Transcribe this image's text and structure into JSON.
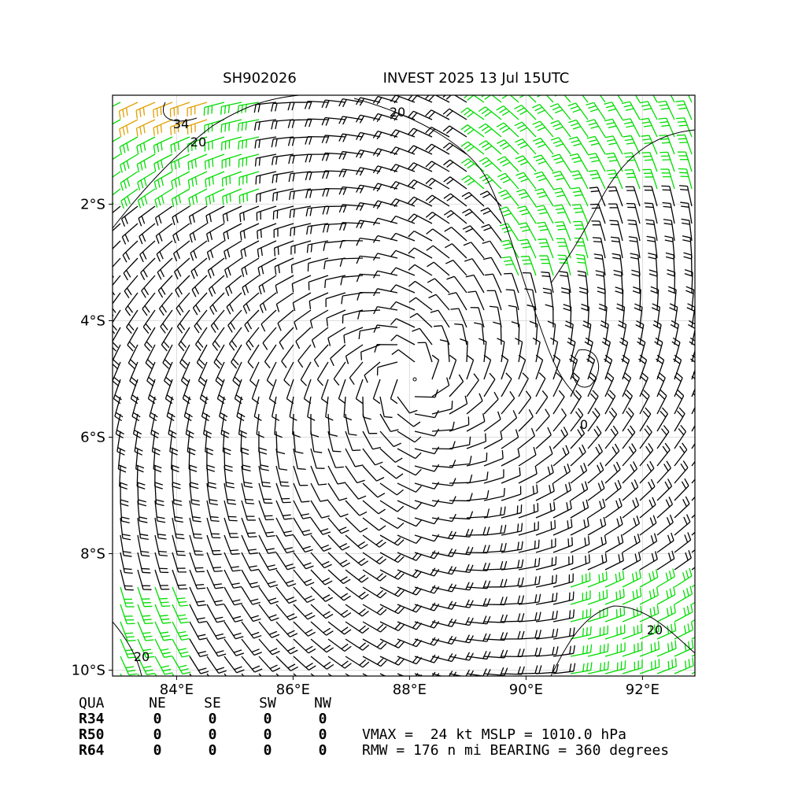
{
  "header": {
    "id": "SH902026",
    "title": "INVEST 2025 13 Jul 15UTC"
  },
  "map": {
    "xlim": [
      82.9,
      92.9
    ],
    "ylim": [
      -10.1,
      -0.13
    ],
    "xticks": [
      {
        "value": 84,
        "label": "84°E"
      },
      {
        "value": 86,
        "label": "86°E"
      },
      {
        "value": 88,
        "label": "88°E"
      },
      {
        "value": 90,
        "label": "90°E"
      },
      {
        "value": 92,
        "label": "92°E"
      }
    ],
    "yticks": [
      {
        "value": -2,
        "label": "2°S"
      },
      {
        "value": -4,
        "label": "4°S"
      },
      {
        "value": -6,
        "label": "6°S"
      },
      {
        "value": -8,
        "label": "8°S"
      },
      {
        "value": -10,
        "label": "10°S"
      }
    ],
    "grid": true,
    "contour_labels": [
      "20",
      "34",
      "20",
      "20",
      "0",
      "20"
    ]
  },
  "table": {
    "columns": [
      "QUA",
      "NE",
      "SE",
      "SW",
      "NW"
    ],
    "rows": [
      [
        "R34",
        0,
        0,
        0,
        0
      ],
      [
        "R50",
        0,
        0,
        0,
        0
      ],
      [
        "R64",
        0,
        0,
        0,
        0
      ]
    ]
  },
  "summary": [
    "VMAX =  24 kt MSLP = 1010.0 hPa",
    "RMW = 176 n mi BEARING = 360 degrees"
  ]
}
